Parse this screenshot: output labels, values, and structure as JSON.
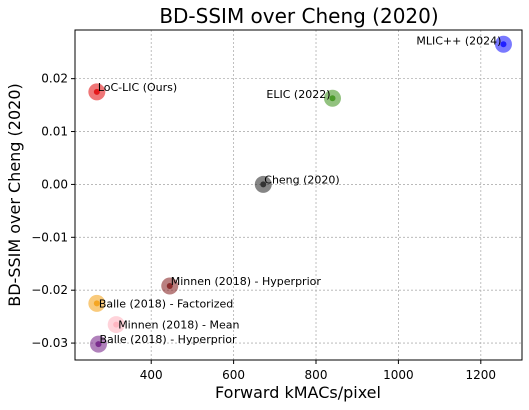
{
  "chart_data": {
    "type": "scatter",
    "title": "BD-SSIM over Cheng (2020)",
    "xlabel": "Forward kMACs/pixel",
    "ylabel": "BD-SSIM over Cheng (2020)",
    "xlim": [
      215,
      1300
    ],
    "ylim": [
      -0.0332,
      0.0292
    ],
    "xticks": [
      400,
      600,
      800,
      1000,
      1200
    ],
    "xtick_labels": [
      "400",
      "600",
      "800",
      "1000",
      "1200"
    ],
    "yticks": [
      -0.03,
      -0.02,
      -0.01,
      0.0,
      0.01,
      0.02
    ],
    "ytick_labels": [
      "−0.03",
      "−0.02",
      "−0.01",
      "0.00",
      "0.01",
      "0.02"
    ],
    "grid": true,
    "points": [
      {
        "label": "LoC-LIC (Ours)",
        "x": 268,
        "y": 0.0175,
        "color": "#e41a1c",
        "label_pos": "right-up"
      },
      {
        "label": "ELIC (2022)",
        "x": 840,
        "y": 0.0163,
        "color": "#4a9a2a",
        "label_pos": "left"
      },
      {
        "label": "MLIC++ (2024)",
        "x": 1255,
        "y": 0.0265,
        "color": "#1f1fff",
        "label_pos": "left"
      },
      {
        "label": "Cheng (2020)",
        "x": 672,
        "y": 0.0,
        "color": "#333333",
        "label_pos": "right-up"
      },
      {
        "label": "Minnen (2018) - Hyperprior",
        "x": 445,
        "y": -0.0192,
        "color": "#8b2c2c",
        "label_pos": "right-up"
      },
      {
        "label": "Balle (2018) - Factorized",
        "x": 268,
        "y": -0.0225,
        "color": "#f5a623",
        "label_pos": "right"
      },
      {
        "label": "Minnen (2018) - Mean",
        "x": 315,
        "y": -0.0265,
        "color": "#ffb6c1",
        "label_pos": "right"
      },
      {
        "label": "Balle (2018) - Hyperprior",
        "x": 272,
        "y": -0.0302,
        "color": "#7b2d8e",
        "label_pos": "right-up"
      }
    ]
  }
}
